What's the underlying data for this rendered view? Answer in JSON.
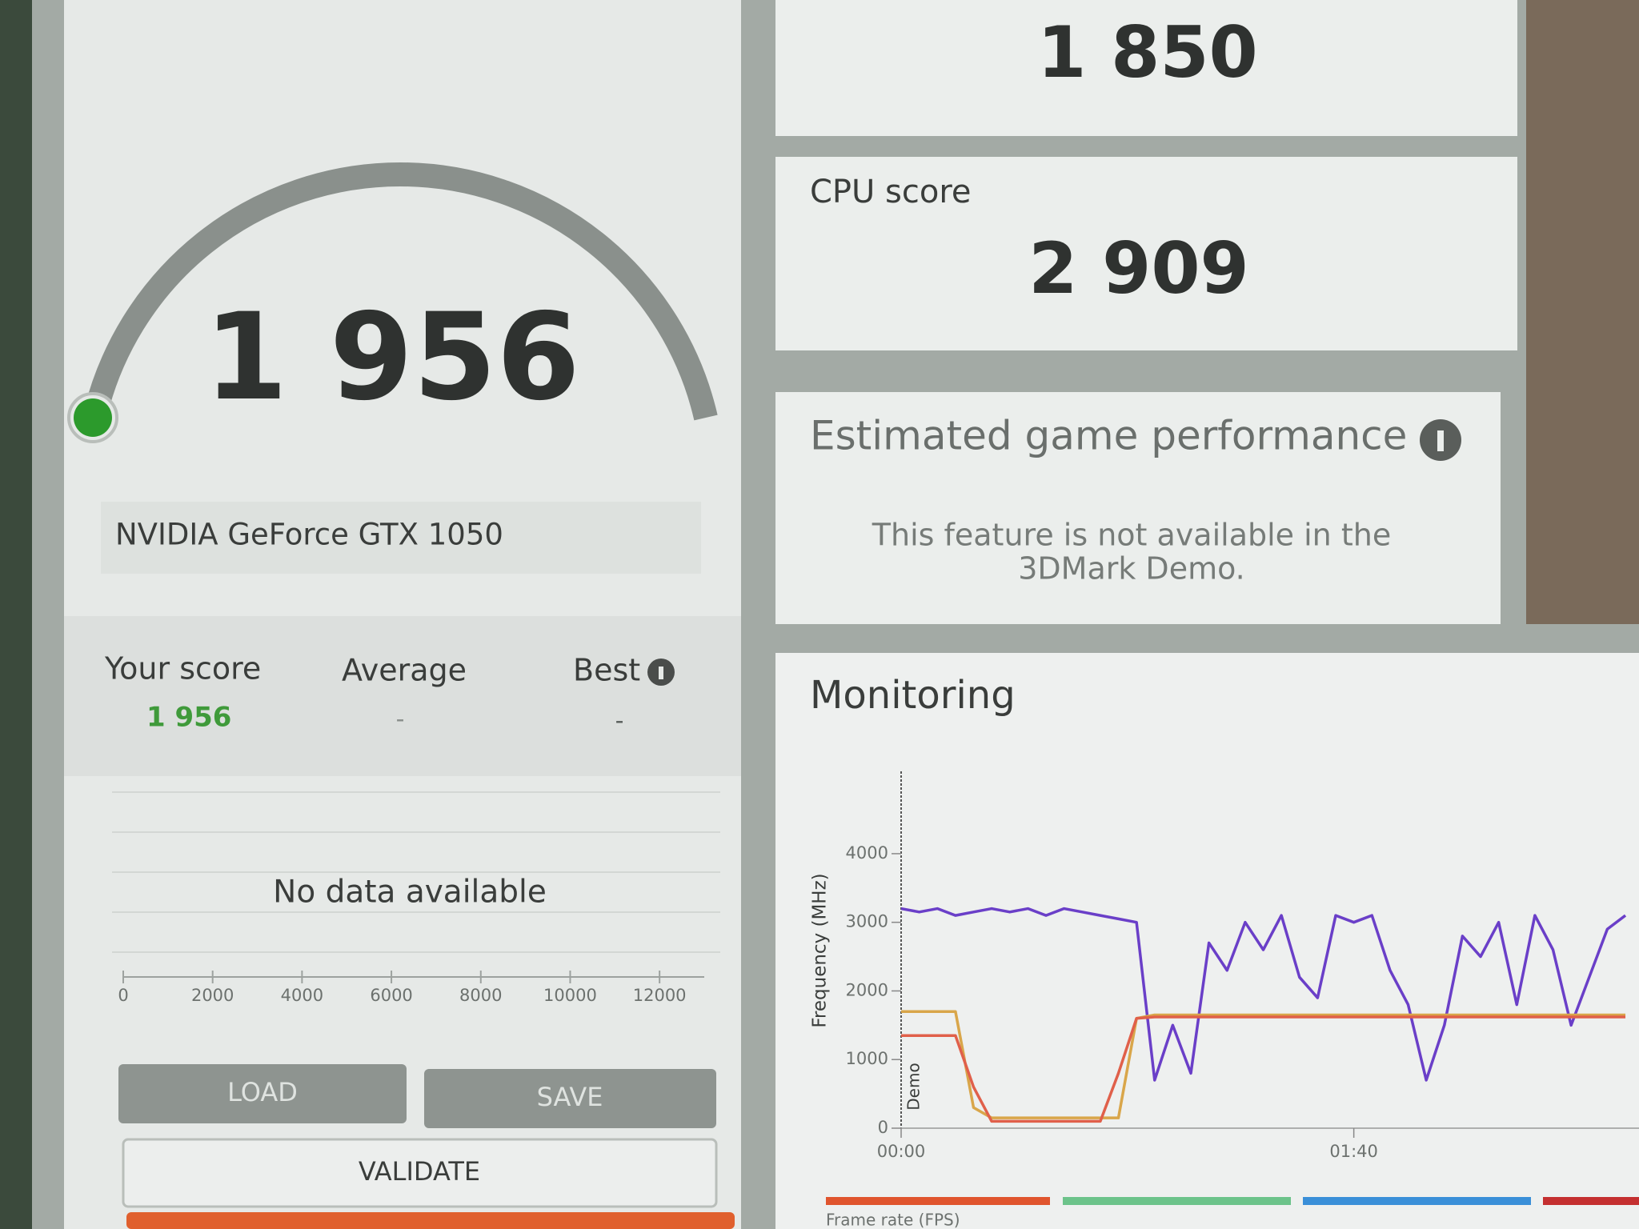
{
  "score_panel": {
    "score": "1 956",
    "gpu": "NVIDIA GeForce GTX 1050",
    "columns": [
      "Your score",
      "Average",
      "Best"
    ],
    "values": [
      "1 956",
      "-",
      "-"
    ],
    "no_data": "No data available",
    "distribution": {
      "xlim": [
        0,
        13000
      ],
      "xticks": [
        0,
        2000,
        4000,
        6000,
        8000,
        10000,
        12000
      ]
    },
    "buttons": [
      "LOAD",
      "SAVE",
      "VALIDATE"
    ]
  },
  "graphics_score": "1 850",
  "cpu_score": {
    "label": "CPU score",
    "value": "2 909"
  },
  "game_performance": {
    "title": "Estimated game performance",
    "message": [
      "This feature is not available in the",
      "3DMark Demo."
    ]
  },
  "monitoring_title": "Monitoring",
  "chart_data": {
    "type": "line",
    "y_label": "Frequency (MHz)",
    "annotation": "Demo",
    "x": [
      0,
      4,
      8,
      12,
      16,
      20,
      24,
      28,
      32,
      36,
      40,
      44,
      48,
      52,
      56,
      60,
      64,
      68,
      72,
      76,
      80,
      84,
      88,
      92,
      96,
      100,
      104,
      108,
      112,
      116,
      120,
      124,
      128,
      132,
      136,
      140,
      144,
      148,
      152,
      156,
      160
    ],
    "xlim": [
      0,
      163
    ],
    "xticks": [
      {
        "value": 0,
        "label": "00:00"
      },
      {
        "value": 100,
        "label": "01:40"
      }
    ],
    "ylim": [
      0,
      5200
    ],
    "yticks": [
      0,
      1000,
      2000,
      3000,
      4000
    ],
    "series": [
      {
        "color": "#6a3fc8",
        "values": [
          3200,
          3150,
          3200,
          3100,
          3150,
          3200,
          3150,
          3200,
          3100,
          3200,
          3150,
          3100,
          3050,
          3000,
          700,
          1500,
          800,
          2700,
          2300,
          3000,
          2600,
          3100,
          2200,
          1900,
          3100,
          3000,
          3100,
          2300,
          1800,
          700,
          1500,
          2800,
          2500,
          3000,
          1800,
          3100,
          2600,
          1500,
          2200,
          2900,
          3100
        ]
      },
      {
        "color": "#d9a64a",
        "values": [
          1700,
          1700,
          1700,
          1700,
          300,
          150,
          150,
          150,
          150,
          150,
          150,
          150,
          150,
          1600,
          1650,
          1650,
          1650,
          1650,
          1650,
          1650,
          1650,
          1650,
          1650,
          1650,
          1650,
          1650,
          1650,
          1650,
          1650,
          1650,
          1650,
          1650,
          1650,
          1650,
          1650,
          1650,
          1650,
          1650,
          1650,
          1650,
          1650
        ]
      },
      {
        "color": "#e0604a",
        "values": [
          1350,
          1350,
          1350,
          1350,
          600,
          100,
          100,
          100,
          100,
          100,
          100,
          100,
          800,
          1600,
          1620,
          1620,
          1620,
          1620,
          1620,
          1620,
          1620,
          1620,
          1620,
          1620,
          1620,
          1620,
          1620,
          1620,
          1620,
          1620,
          1620,
          1620,
          1620,
          1620,
          1620,
          1620,
          1620,
          1620,
          1620,
          1620,
          1620
        ]
      }
    ],
    "legend_labels": [
      "Frame rate (FPS)"
    ]
  }
}
